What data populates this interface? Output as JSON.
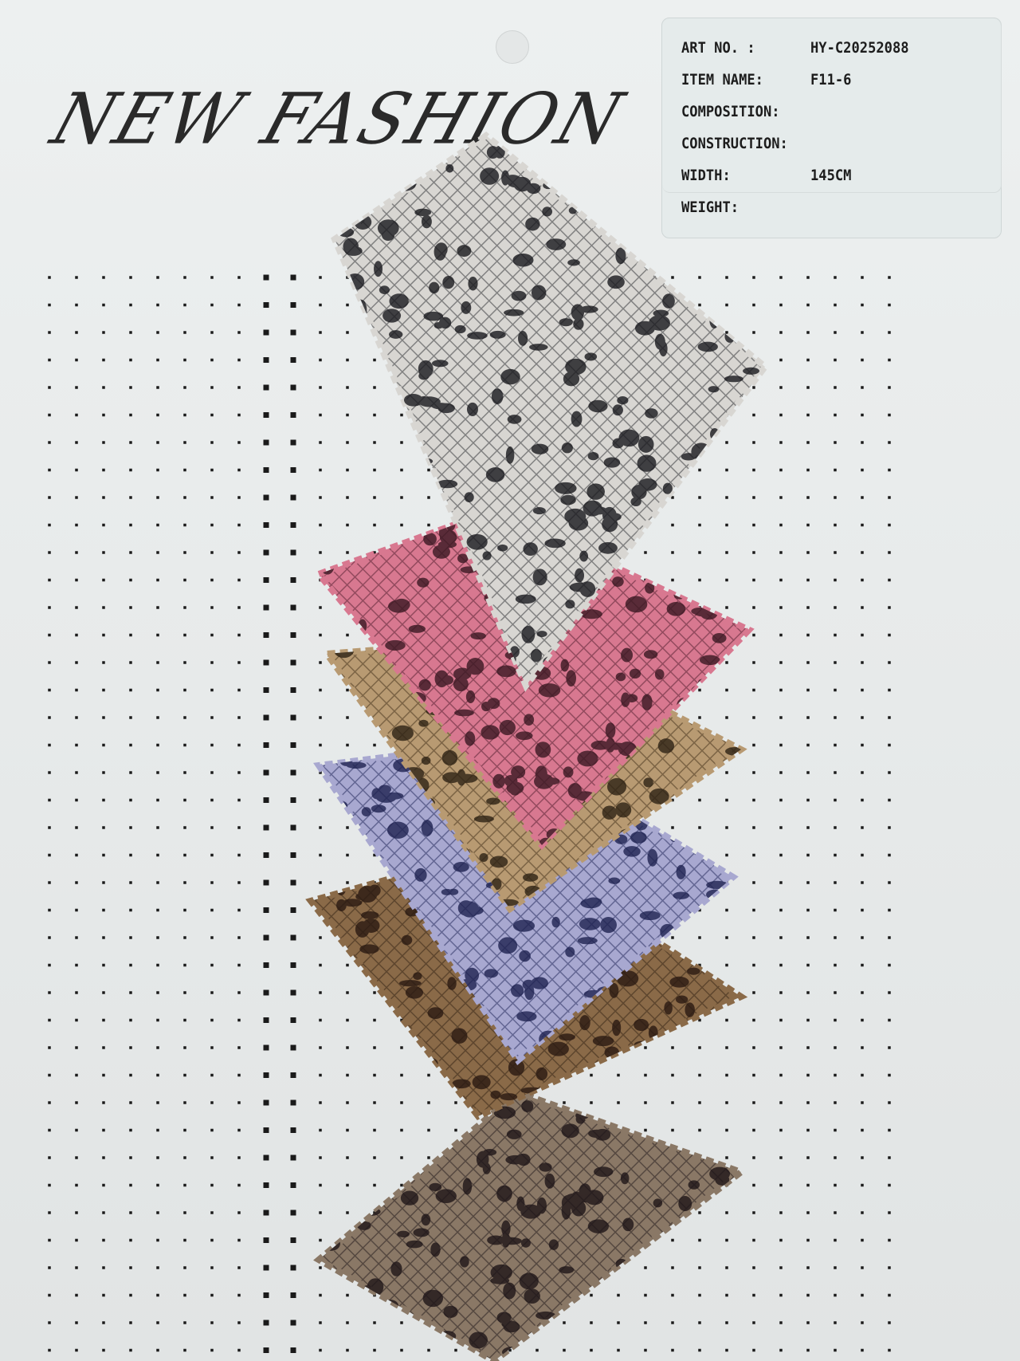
{
  "card": {
    "brand_title": "NEW FASHION",
    "spec_label": {
      "rows": [
        {
          "key": "ART NO. :",
          "value": "HY-C20252088"
        },
        {
          "key": "ITEM NAME:",
          "value": "F11-6"
        },
        {
          "key": "COMPOSITION:",
          "value": ""
        },
        {
          "key": "CONSTRUCTION:",
          "value": ""
        },
        {
          "key": "WIDTH:",
          "value": "145CM"
        },
        {
          "key": "WEIGHT:",
          "value": ""
        }
      ]
    },
    "swatches": [
      {
        "name": "dark-leopard",
        "base": "#8a7866",
        "spot": "#1e1618",
        "mesh": "#2a2020"
      },
      {
        "name": "bronze",
        "base": "#8a6a48",
        "spot": "#2a1a12",
        "mesh": "#3a2818"
      },
      {
        "name": "lavender-blue",
        "base": "#a8a8d0",
        "spot": "#1e2250",
        "mesh": "#2a2e60"
      },
      {
        "name": "gold",
        "base": "#b89a72",
        "spot": "#2e2214",
        "mesh": "#4a3820"
      },
      {
        "name": "pink",
        "base": "#d87890",
        "spot": "#3a1822",
        "mesh": "#5a2434"
      },
      {
        "name": "silver",
        "base": "#d8d6d2",
        "spot": "#1a1a1e",
        "mesh": "#3a3a3e"
      }
    ]
  }
}
